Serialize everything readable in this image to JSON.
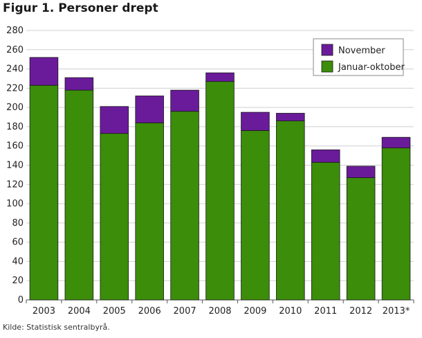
{
  "chart_data": {
    "type": "bar",
    "stacked": true,
    "title": "Figur 1. Personer drept",
    "xlabel": "",
    "ylabel": "",
    "categories": [
      "2003",
      "2004",
      "2005",
      "2006",
      "2007",
      "2008",
      "2009",
      "2010",
      "2011",
      "2012",
      "2013*"
    ],
    "series": [
      {
        "name": "Januar-oktober",
        "color": "#3b8d0a",
        "values": [
          223,
          218,
          173,
          184,
          196,
          227,
          176,
          186,
          143,
          127,
          158
        ]
      },
      {
        "name": "November",
        "color": "#6a1b9a",
        "values": [
          29,
          13,
          28,
          28,
          22,
          9,
          19,
          8,
          13,
          12,
          11
        ]
      }
    ],
    "ylim": [
      0,
      280
    ],
    "yticks": [
      0,
      20,
      40,
      60,
      80,
      100,
      120,
      140,
      160,
      180,
      200,
      220,
      240,
      260,
      280
    ],
    "grid": true,
    "legend_position": "top-right",
    "legend_order": [
      "November",
      "Januar-oktober"
    ]
  },
  "source": "Kilde: Statistisk sentralbyrå."
}
